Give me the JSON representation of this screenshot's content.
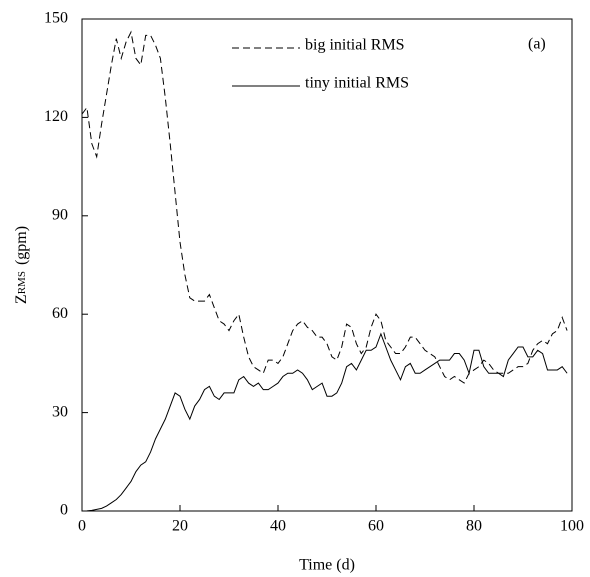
{
  "chart_data": {
    "type": "line",
    "x_label": "Time (d)",
    "y_label": {
      "main": "Z",
      "sub": "RMS",
      "unit": "(gpm)"
    },
    "annotation": "(a)",
    "xlim": [
      0,
      100
    ],
    "xticks": [
      0,
      20,
      40,
      60,
      80,
      100
    ],
    "ylim": [
      0,
      150
    ],
    "yticks": [
      0,
      30,
      60,
      90,
      120,
      150
    ],
    "x": [
      0,
      1,
      2,
      3,
      4,
      5,
      6,
      7,
      8,
      9,
      10,
      11,
      12,
      13,
      14,
      15,
      16,
      17,
      18,
      19,
      20,
      21,
      22,
      23,
      24,
      25,
      26,
      27,
      28,
      29,
      30,
      31,
      32,
      33,
      34,
      35,
      36,
      37,
      38,
      39,
      40,
      41,
      42,
      43,
      44,
      45,
      46,
      47,
      48,
      49,
      50,
      51,
      52,
      53,
      54,
      55,
      56,
      57,
      58,
      59,
      60,
      61,
      62,
      63,
      64,
      65,
      66,
      67,
      68,
      69,
      70,
      71,
      72,
      73,
      74,
      75,
      76,
      77,
      78,
      79,
      80,
      81,
      82,
      83,
      84,
      85,
      86,
      87,
      88,
      89,
      90,
      91,
      92,
      93,
      94,
      95,
      96,
      97,
      98,
      99
    ],
    "series": [
      {
        "name": "big initial RMS",
        "color": "#000000",
        "style": "dashed",
        "values": [
          121,
          123,
          112,
          108,
          118,
          127,
          136,
          144,
          138,
          143,
          146,
          138,
          136,
          145,
          145,
          142,
          138,
          126,
          112,
          97,
          82,
          72,
          65,
          64,
          64,
          64,
          66,
          62,
          58,
          57,
          55,
          58,
          60,
          53,
          47,
          44,
          43,
          42,
          46,
          46,
          45,
          47,
          51,
          55,
          57,
          58,
          56,
          55,
          53,
          53,
          51,
          47,
          46,
          50,
          57,
          56,
          51,
          48,
          50,
          56,
          60,
          58,
          52,
          50,
          48,
          48,
          50,
          53,
          53,
          51,
          49,
          48,
          47,
          44,
          41,
          40,
          41,
          40,
          39,
          42,
          43,
          44,
          46,
          45,
          43,
          42,
          42,
          42,
          43,
          44,
          44,
          45,
          49,
          51,
          52,
          51,
          54,
          55,
          59,
          55
        ]
      },
      {
        "name": "tiny initial RMS",
        "color": "#000000",
        "style": "solid",
        "values": [
          0,
          0.05,
          0.2,
          0.5,
          0.8,
          1.5,
          2.5,
          3.5,
          5,
          7,
          9,
          12,
          14,
          15,
          18,
          22,
          25,
          28,
          32,
          36,
          35,
          31,
          28,
          32,
          34,
          37,
          38,
          35,
          34,
          36,
          36,
          36,
          40,
          41,
          39,
          38,
          39,
          37,
          37,
          38,
          39,
          41,
          42,
          42,
          43,
          42,
          40,
          37,
          38,
          39,
          35,
          35,
          36,
          39,
          44,
          45,
          43,
          46,
          49,
          49,
          50,
          54,
          50,
          46,
          43,
          40,
          44,
          45,
          42,
          42,
          43,
          44,
          45,
          46,
          46,
          46,
          48,
          48,
          46,
          42,
          49,
          49,
          44,
          42,
          42,
          42,
          41,
          46,
          48,
          50,
          50,
          47,
          47,
          49,
          48,
          43,
          43,
          43,
          44,
          42
        ]
      }
    ]
  }
}
